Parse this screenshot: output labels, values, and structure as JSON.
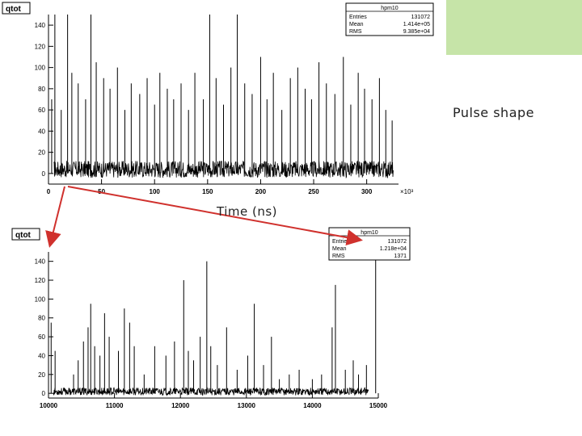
{
  "slide": {
    "annotation": "Pulse shape",
    "time_axis_label": "Time (ns)",
    "accent_box_color": "#c6e4a8",
    "arrow_color": "#d0312d"
  },
  "chart_data": [
    {
      "type": "line",
      "title": "qtot",
      "xlabel": "",
      "ylabel": "",
      "x_unit_multiplier": "×10³",
      "xlim": [
        0,
        330
      ],
      "ylim": [
        -10,
        150
      ],
      "x_ticks": [
        0,
        50,
        100,
        150,
        200,
        250,
        300
      ],
      "y_ticks": [
        0,
        20,
        40,
        60,
        80,
        100,
        120,
        140
      ],
      "stats_box": {
        "name": "hpm10",
        "rows": [
          {
            "label": "Entries",
            "value": "131072"
          },
          {
            "label": "Mean",
            "value": "1.414e+05"
          },
          {
            "label": "RMS",
            "value": "9.385e+04"
          }
        ]
      },
      "series_color": "#000000",
      "baseline": 0,
      "noise_band": [
        -4,
        12
      ],
      "peaks": [
        {
          "x": 3,
          "y": 70
        },
        {
          "x": 6,
          "y": 150
        },
        {
          "x": 12,
          "y": 60
        },
        {
          "x": 18,
          "y": 150
        },
        {
          "x": 22,
          "y": 95
        },
        {
          "x": 28,
          "y": 85
        },
        {
          "x": 35,
          "y": 70
        },
        {
          "x": 40,
          "y": 150
        },
        {
          "x": 45,
          "y": 105
        },
        {
          "x": 52,
          "y": 90
        },
        {
          "x": 58,
          "y": 80
        },
        {
          "x": 65,
          "y": 100
        },
        {
          "x": 72,
          "y": 60
        },
        {
          "x": 78,
          "y": 85
        },
        {
          "x": 86,
          "y": 75
        },
        {
          "x": 93,
          "y": 90
        },
        {
          "x": 100,
          "y": 65
        },
        {
          "x": 105,
          "y": 95
        },
        {
          "x": 112,
          "y": 80
        },
        {
          "x": 118,
          "y": 70
        },
        {
          "x": 125,
          "y": 85
        },
        {
          "x": 132,
          "y": 60
        },
        {
          "x": 138,
          "y": 95
        },
        {
          "x": 146,
          "y": 70
        },
        {
          "x": 152,
          "y": 150
        },
        {
          "x": 158,
          "y": 90
        },
        {
          "x": 165,
          "y": 65
        },
        {
          "x": 172,
          "y": 100
        },
        {
          "x": 178,
          "y": 150
        },
        {
          "x": 185,
          "y": 85
        },
        {
          "x": 192,
          "y": 75
        },
        {
          "x": 200,
          "y": 110
        },
        {
          "x": 206,
          "y": 70
        },
        {
          "x": 212,
          "y": 95
        },
        {
          "x": 220,
          "y": 60
        },
        {
          "x": 228,
          "y": 90
        },
        {
          "x": 235,
          "y": 100
        },
        {
          "x": 242,
          "y": 80
        },
        {
          "x": 248,
          "y": 70
        },
        {
          "x": 255,
          "y": 105
        },
        {
          "x": 262,
          "y": 85
        },
        {
          "x": 270,
          "y": 75
        },
        {
          "x": 278,
          "y": 110
        },
        {
          "x": 285,
          "y": 65
        },
        {
          "x": 292,
          "y": 95
        },
        {
          "x": 298,
          "y": 80
        },
        {
          "x": 305,
          "y": 70
        },
        {
          "x": 312,
          "y": 90
        },
        {
          "x": 318,
          "y": 60
        },
        {
          "x": 324,
          "y": 50
        }
      ]
    },
    {
      "type": "line",
      "title": "qtot",
      "xlabel": "",
      "ylabel": "",
      "xlim": [
        10000,
        15000
      ],
      "ylim": [
        -5,
        150
      ],
      "x_ticks": [
        10000,
        11000,
        12000,
        13000,
        14000,
        15000
      ],
      "y_ticks": [
        0,
        20,
        40,
        60,
        80,
        100,
        120,
        140
      ],
      "stats_box": {
        "name": "hpm10",
        "rows": [
          {
            "label": "Entries",
            "value": "131072"
          },
          {
            "label": "Mean",
            "value": "1.218e+04"
          },
          {
            "label": "RMS",
            "value": "1371"
          }
        ]
      },
      "series_color": "#000000",
      "baseline": 0,
      "noise_band": [
        -2,
        6
      ],
      "peaks": [
        {
          "x": 10040,
          "y": 75
        },
        {
          "x": 10100,
          "y": 45
        },
        {
          "x": 10380,
          "y": 20
        },
        {
          "x": 10450,
          "y": 35
        },
        {
          "x": 10530,
          "y": 55
        },
        {
          "x": 10600,
          "y": 70
        },
        {
          "x": 10640,
          "y": 95
        },
        {
          "x": 10700,
          "y": 50
        },
        {
          "x": 10780,
          "y": 40
        },
        {
          "x": 10850,
          "y": 85
        },
        {
          "x": 10920,
          "y": 60
        },
        {
          "x": 11060,
          "y": 45
        },
        {
          "x": 11150,
          "y": 90
        },
        {
          "x": 11230,
          "y": 75
        },
        {
          "x": 11300,
          "y": 50
        },
        {
          "x": 11450,
          "y": 20
        },
        {
          "x": 11610,
          "y": 50
        },
        {
          "x": 11780,
          "y": 40
        },
        {
          "x": 11910,
          "y": 55
        },
        {
          "x": 12050,
          "y": 120
        },
        {
          "x": 12120,
          "y": 45
        },
        {
          "x": 12200,
          "y": 35
        },
        {
          "x": 12300,
          "y": 60
        },
        {
          "x": 12400,
          "y": 140
        },
        {
          "x": 12460,
          "y": 50
        },
        {
          "x": 12560,
          "y": 30
        },
        {
          "x": 12700,
          "y": 70
        },
        {
          "x": 12860,
          "y": 25
        },
        {
          "x": 13020,
          "y": 40
        },
        {
          "x": 13120,
          "y": 95
        },
        {
          "x": 13260,
          "y": 30
        },
        {
          "x": 13380,
          "y": 60
        },
        {
          "x": 13500,
          "y": 15
        },
        {
          "x": 13650,
          "y": 20
        },
        {
          "x": 13800,
          "y": 25
        },
        {
          "x": 14000,
          "y": 15
        },
        {
          "x": 14140,
          "y": 20
        },
        {
          "x": 14300,
          "y": 70
        },
        {
          "x": 14350,
          "y": 115
        },
        {
          "x": 14500,
          "y": 25
        },
        {
          "x": 14620,
          "y": 35
        },
        {
          "x": 14700,
          "y": 20
        },
        {
          "x": 14820,
          "y": 30
        },
        {
          "x": 14960,
          "y": 150
        }
      ]
    }
  ]
}
